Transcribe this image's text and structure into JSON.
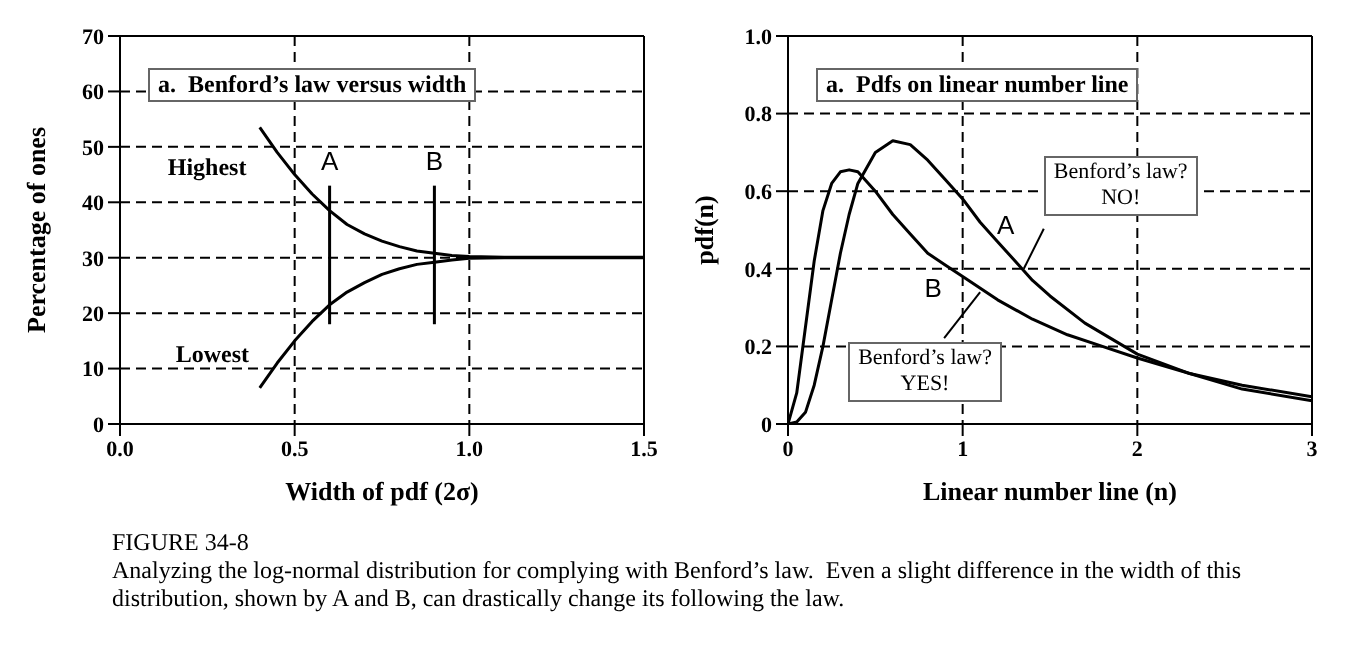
{
  "chart_data": [
    {
      "type": "line",
      "title": "a.  Benford’s law versus width",
      "xlabel": "Width of pdf (2σ)",
      "ylabel": "Percentage of ones",
      "xlim": [
        0,
        1.5
      ],
      "xticks": [
        {
          "value": 0,
          "label": "0.0"
        },
        0.5,
        {
          "value": 1,
          "label": "1.0"
        },
        1.5
      ],
      "ylim": [
        0,
        70
      ],
      "yticks": [
        0,
        10,
        20,
        30,
        40,
        50,
        60,
        70
      ],
      "grid": true,
      "legend": false,
      "marker": "none",
      "line_style": "solid",
      "series": [
        {
          "name": "Highest",
          "color": "#000000",
          "x": [
            0.4,
            0.45,
            0.5,
            0.55,
            0.6,
            0.65,
            0.7,
            0.75,
            0.8,
            0.85,
            0.9,
            0.95,
            1.0,
            1.1,
            1.5
          ],
          "values": [
            53.5,
            49,
            45,
            41.5,
            38.5,
            36,
            34.3,
            33,
            32,
            31.2,
            30.8,
            30.4,
            30.2,
            30.1,
            30.1
          ]
        },
        {
          "name": "Lowest",
          "color": "#000000",
          "x": [
            0.4,
            0.45,
            0.5,
            0.55,
            0.6,
            0.65,
            0.7,
            0.75,
            0.8,
            0.85,
            0.9,
            0.95,
            1.0,
            1.1,
            1.5
          ],
          "values": [
            6.5,
            11,
            15,
            18.5,
            21.5,
            23.8,
            25.5,
            27,
            28,
            28.8,
            29.2,
            29.6,
            29.9,
            30,
            30
          ]
        },
        {
          "name": "A",
          "color": "#000000",
          "x": [
            0.6,
            0.6
          ],
          "values": [
            43,
            18
          ]
        },
        {
          "name": "B",
          "color": "#000000",
          "x": [
            0.9,
            0.9
          ],
          "values": [
            43,
            18
          ]
        }
      ],
      "annotations": [
        "FIGURE 34-8",
        "Analyzing the log-normal distribution for complying with Benford’s law.  Even a slight difference in the width of this distribution, shown by A and B, can drastically change its following the law."
      ]
    },
    {
      "type": "line",
      "title": "a.  Pdfs on linear number line",
      "xlabel": "Linear number line (n)",
      "ylabel": "pdf(n)",
      "xlim": [
        0,
        3
      ],
      "xticks": [
        0,
        1,
        2,
        3
      ],
      "ylim": [
        0,
        1.0
      ],
      "yticks": [
        0,
        0.2,
        0.4,
        0.6,
        0.8,
        {
          "value": 1,
          "label": "1.0"
        }
      ],
      "grid": true,
      "legend": false,
      "marker": "none",
      "line_style": "solid",
      "series": [
        {
          "name": "A",
          "color": "#000000",
          "x": [
            0,
            0.05,
            0.1,
            0.15,
            0.2,
            0.25,
            0.3,
            0.35,
            0.4,
            0.5,
            0.6,
            0.7,
            0.8,
            0.9,
            1.0,
            1.1,
            1.2,
            1.3,
            1.4,
            1.5,
            1.7,
            2.0,
            2.3,
            2.6,
            3.0
          ],
          "values": [
            0,
            0.005,
            0.03,
            0.1,
            0.2,
            0.32,
            0.44,
            0.54,
            0.62,
            0.7,
            0.73,
            0.72,
            0.68,
            0.63,
            0.58,
            0.52,
            0.47,
            0.42,
            0.37,
            0.33,
            0.26,
            0.18,
            0.13,
            0.09,
            0.06
          ]
        },
        {
          "name": "B",
          "color": "#000000",
          "x": [
            0,
            0.05,
            0.1,
            0.15,
            0.2,
            0.25,
            0.3,
            0.35,
            0.4,
            0.5,
            0.6,
            0.7,
            0.8,
            0.9,
            1.0,
            1.2,
            1.4,
            1.6,
            1.8,
            2.0,
            2.3,
            2.6,
            3.0
          ],
          "values": [
            0,
            0.08,
            0.25,
            0.42,
            0.55,
            0.62,
            0.65,
            0.655,
            0.65,
            0.6,
            0.54,
            0.49,
            0.44,
            0.41,
            0.38,
            0.32,
            0.27,
            0.23,
            0.2,
            0.17,
            0.13,
            0.1,
            0.07
          ]
        }
      ],
      "annotations": [
        {
          "text": "Benford’s law?\nNO!",
          "x": 1.35,
          "y": 0.4
        },
        {
          "text": "Benford’s law?\nYES!",
          "x": 1.1,
          "y": 0.34
        }
      ]
    }
  ]
}
